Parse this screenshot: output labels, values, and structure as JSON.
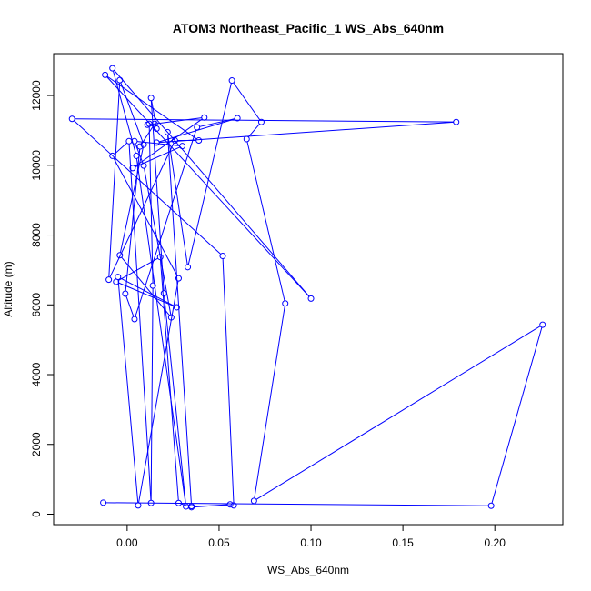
{
  "chart_data": {
    "type": "line",
    "title": "ATOM3 Northeast_Pacific_1 WS_Abs_640nm",
    "xlabel": "WS_Abs_640nm",
    "ylabel": "Altitude (m)",
    "xlim": [
      -0.04,
      0.237
    ],
    "ylim": [
      -300,
      13200
    ],
    "xticks": [
      0.0,
      0.05,
      0.1,
      0.15,
      0.2
    ],
    "xtick_labels": [
      "0.00",
      "0.05",
      "0.10",
      "0.15",
      "0.20"
    ],
    "yticks": [
      0,
      2000,
      4000,
      6000,
      8000,
      10000,
      12000
    ],
    "ytick_labels": [
      "0",
      "2000",
      "4000",
      "6000",
      "8000",
      "10000",
      "12000"
    ],
    "grid": false,
    "legend": "none",
    "color": "#0000ff",
    "series": [
      {
        "marker": "open-circle",
        "x": [
          -0.013,
          0.198,
          0.226,
          0.069,
          0.086,
          0.065,
          0.073,
          0.057,
          0.033,
          0.022,
          0.035,
          0.058,
          0.052,
          -0.03,
          0.179,
          0.016,
          0.06,
          0.038,
          0.004,
          -0.001,
          0.007,
          0.015,
          0.016,
          0.013,
          0.02,
          0.032,
          0.005,
          -0.008,
          0.1,
          -0.012,
          0.039,
          0.026,
          -0.01,
          -0.004,
          0.009,
          -0.004,
          0.024,
          0.009,
          0.004,
          0.03,
          0.003,
          0.042,
          0.011,
          0.012,
          0.014,
          0.013,
          0.001,
          -0.008,
          0.028,
          0.006,
          -0.005,
          0.027,
          -0.006,
          0.018,
          0.028,
          0.035,
          0.056
        ],
        "y": [
          330,
          240,
          5430,
          380,
          6040,
          10750,
          11240,
          12430,
          7080,
          10950,
          230,
          250,
          7400,
          11330,
          11240,
          10650,
          11350,
          11090,
          5590,
          6320,
          10540,
          11190,
          11050,
          11930,
          6330,
          220,
          10270,
          12780,
          6180,
          12590,
          10710,
          10710,
          6720,
          12440,
          10590,
          7420,
          5640,
          9990,
          10690,
          10550,
          9920,
          11370,
          11160,
          11190,
          6550,
          320,
          10690,
          10270,
          6760,
          250,
          6800,
          5930,
          6660,
          7370,
          320,
          200,
          280
        ]
      }
    ]
  }
}
